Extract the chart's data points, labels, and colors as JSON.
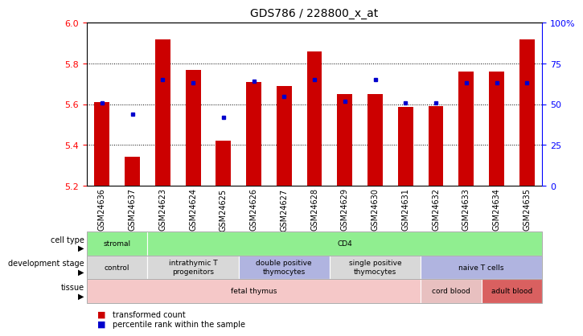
{
  "title": "GDS786 / 228800_x_at",
  "samples": [
    "GSM24636",
    "GSM24637",
    "GSM24623",
    "GSM24624",
    "GSM24625",
    "GSM24626",
    "GSM24627",
    "GSM24628",
    "GSM24629",
    "GSM24630",
    "GSM24631",
    "GSM24632",
    "GSM24633",
    "GSM24634",
    "GSM24635"
  ],
  "bar_values": [
    5.61,
    5.34,
    5.92,
    5.77,
    5.42,
    5.71,
    5.69,
    5.86,
    5.65,
    5.65,
    5.585,
    5.59,
    5.76,
    5.76,
    5.92
  ],
  "percentile_values": [
    51,
    44,
    65,
    63,
    42,
    64,
    55,
    65,
    52,
    65,
    51,
    51,
    63,
    63,
    63
  ],
  "ymin": 5.2,
  "ymax": 6.0,
  "yticks_left": [
    5.2,
    5.4,
    5.6,
    5.8,
    6.0
  ],
  "yticks_right": [
    0,
    25,
    50,
    75,
    100
  ],
  "bar_color": "#cc0000",
  "dot_color": "#0000cc",
  "cell_type_items": [
    {
      "label": "stromal",
      "start": 0,
      "end": 2,
      "color": "#90ee90"
    },
    {
      "label": "CD4",
      "start": 2,
      "end": 15,
      "color": "#90ee90"
    }
  ],
  "dev_stage_items": [
    {
      "label": "control",
      "start": 0,
      "end": 2,
      "color": "#d8d8d8"
    },
    {
      "label": "intrathymic T\nprogenitors",
      "start": 2,
      "end": 5,
      "color": "#d8d8d8"
    },
    {
      "label": "double positive\nthymocytes",
      "start": 5,
      "end": 8,
      "color": "#b0b4e0"
    },
    {
      "label": "single positive\nthymocytes",
      "start": 8,
      "end": 11,
      "color": "#d8d8d8"
    },
    {
      "label": "naive T cells",
      "start": 11,
      "end": 15,
      "color": "#b0b4e0"
    }
  ],
  "tissue_items": [
    {
      "label": "fetal thymus",
      "start": 0,
      "end": 11,
      "color": "#f5c8c8"
    },
    {
      "label": "cord blood",
      "start": 11,
      "end": 13,
      "color": "#e8c0c0"
    },
    {
      "label": "adult blood",
      "start": 13,
      "end": 15,
      "color": "#d96060"
    }
  ],
  "row_labels": [
    "cell type",
    "development stage",
    "tissue"
  ],
  "legend_items": [
    {
      "label": "transformed count",
      "color": "#cc0000"
    },
    {
      "label": "percentile rank within the sample",
      "color": "#0000cc"
    }
  ]
}
